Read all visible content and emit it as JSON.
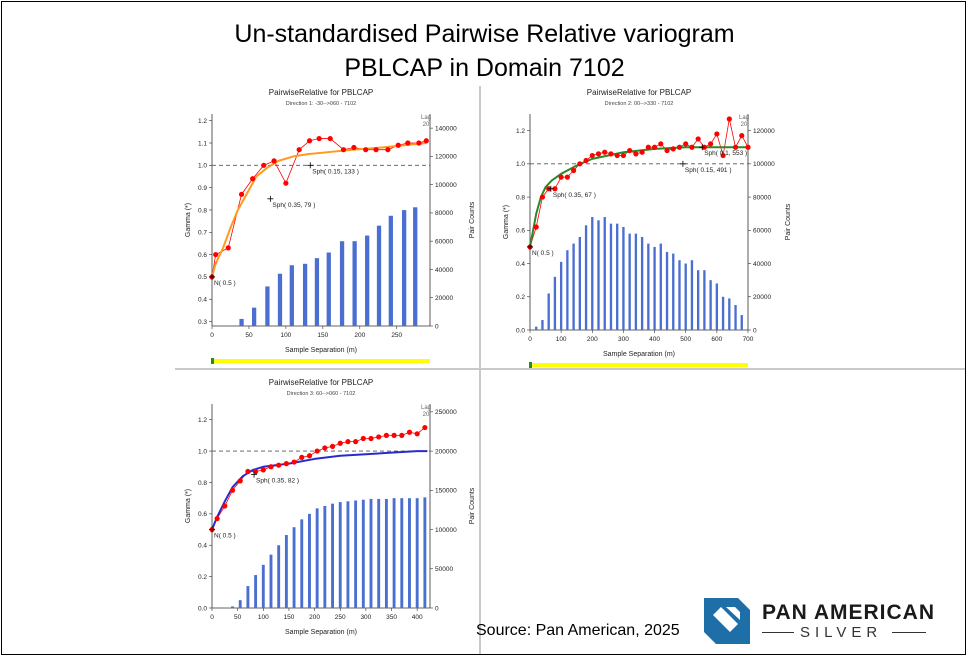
{
  "title_line1": "Un-standardised Pairwise Relative variogram",
  "title_line2": "PBLCAP in Domain 7102",
  "source": "Source: Pan American, 2025",
  "logo": {
    "line1": "PAN AMERICAN",
    "line2": "SILVER",
    "icon": "pan-american-logo-icon",
    "color": "#1e6fa8"
  },
  "colors": {
    "experimental": "#ff0000",
    "bars": "#4a6fd0",
    "fit1": "#ff9a1f",
    "fit2": "#2a8a2a",
    "fit3": "#2a2aca",
    "dashed": "#555555",
    "slider": "#ffff00"
  },
  "chart_data": [
    {
      "type": "line",
      "title": "PairwiseRelative for PBLCAP",
      "subtitle": "Direction 1: -30-->060 - 7102",
      "xlabel": "Sample Separation (m)",
      "ylabel": "Gamma (*)",
      "y2label": "Pair Counts",
      "lag_label": "Lag",
      "lag_value": "20",
      "xlim": [
        0,
        295
      ],
      "ylim": [
        0.28,
        1.23
      ],
      "y2lim": [
        0,
        150000
      ],
      "xticks": [
        0,
        50,
        100,
        150,
        200,
        250
      ],
      "yticks": [
        0.3,
        0.4,
        0.5,
        0.6,
        0.7,
        0.8,
        0.9,
        1.0,
        1.1,
        1.2
      ],
      "y2ticks": [
        0,
        20000,
        40000,
        60000,
        80000,
        100000,
        120000,
        140000
      ],
      "sill": 1.0,
      "fit_color": "#ff9a1f",
      "experimental": {
        "x": [
          0,
          5,
          22,
          40,
          55,
          70,
          84,
          100,
          118,
          132,
          145,
          160,
          178,
          192,
          208,
          222,
          238,
          252,
          265,
          280,
          290
        ],
        "y": [
          0.5,
          0.6,
          0.63,
          0.87,
          0.94,
          1.0,
          1.02,
          0.92,
          1.07,
          1.11,
          1.12,
          1.12,
          1.07,
          1.08,
          1.07,
          1.07,
          1.07,
          1.09,
          1.1,
          1.1,
          1.11
        ]
      },
      "fit": {
        "x": [
          0,
          5,
          15,
          25,
          35,
          50,
          60,
          75,
          90,
          110,
          130,
          160,
          190,
          230,
          260,
          290
        ],
        "y": [
          0.5,
          0.56,
          0.63,
          0.72,
          0.8,
          0.89,
          0.95,
          0.99,
          1.02,
          1.04,
          1.05,
          1.06,
          1.07,
          1.08,
          1.09,
          1.1
        ]
      },
      "bars": {
        "x": [
          40,
          57,
          75,
          92,
          108,
          126,
          142,
          158,
          176,
          193,
          210,
          226,
          242,
          260,
          275
        ],
        "y": [
          5000,
          13000,
          28000,
          37000,
          43000,
          44000,
          48000,
          52000,
          60000,
          60000,
          64000,
          71000,
          78000,
          82000,
          84000
        ]
      },
      "annotations": [
        {
          "text": "N( 0.5 )",
          "x": 0,
          "y": 0.5
        },
        {
          "text": "Sph( 0.35, 79 )",
          "x": 79,
          "y": 0.85
        },
        {
          "text": "Sph( 0.15, 133 )",
          "x": 133,
          "y": 1.0
        }
      ],
      "legend": ""
    },
    {
      "type": "line",
      "title": "PairwiseRelative for PBLCAP",
      "subtitle": "Direction 2: 00-->330 - 7102",
      "xlabel": "Sample Separation (m)",
      "ylabel": "Gamma (*)",
      "y2label": "Pair Counts",
      "lag_label": "Lag",
      "lag_value": "20",
      "xlim": [
        0,
        700
      ],
      "ylim": [
        0,
        1.3
      ],
      "y2lim": [
        0,
        130000
      ],
      "xticks": [
        0,
        100,
        200,
        300,
        400,
        500,
        600,
        700
      ],
      "yticks": [
        0.0,
        0.2,
        0.4,
        0.6,
        0.8,
        1.0,
        1.2
      ],
      "y2ticks": [
        0,
        20000,
        40000,
        60000,
        80000,
        100000,
        120000
      ],
      "sill": 1.0,
      "fit_color": "#2a8a2a",
      "experimental": {
        "x": [
          0,
          20,
          40,
          60,
          80,
          100,
          120,
          140,
          160,
          180,
          200,
          220,
          240,
          260,
          280,
          300,
          320,
          340,
          360,
          380,
          400,
          420,
          440,
          460,
          480,
          500,
          520,
          540,
          560,
          580,
          600,
          620,
          640,
          660,
          680,
          700
        ],
        "y": [
          0.5,
          0.62,
          0.8,
          0.85,
          0.85,
          0.92,
          0.92,
          0.96,
          1.0,
          1.02,
          1.05,
          1.06,
          1.07,
          1.06,
          1.05,
          1.05,
          1.08,
          1.06,
          1.07,
          1.1,
          1.1,
          1.12,
          1.08,
          1.09,
          1.1,
          1.12,
          1.1,
          1.15,
          1.1,
          1.12,
          1.18,
          1.05,
          1.27,
          1.1,
          1.17,
          1.1
        ]
      },
      "fit": {
        "x": [
          0,
          10,
          20,
          35,
          50,
          70,
          100,
          150,
          200,
          300,
          400,
          500,
          600,
          700
        ],
        "y": [
          0.5,
          0.6,
          0.7,
          0.8,
          0.86,
          0.9,
          0.94,
          0.99,
          1.03,
          1.07,
          1.09,
          1.1,
          1.1,
          1.1
        ]
      },
      "bars": {
        "x": [
          20,
          40,
          60,
          80,
          100,
          120,
          140,
          160,
          180,
          200,
          220,
          240,
          260,
          280,
          300,
          320,
          340,
          360,
          380,
          400,
          420,
          440,
          460,
          480,
          500,
          520,
          540,
          560,
          580,
          600,
          620,
          640,
          660,
          680
        ],
        "y": [
          2000,
          6000,
          22000,
          32000,
          41000,
          48000,
          52000,
          56000,
          63000,
          68000,
          66000,
          68000,
          64000,
          64000,
          62000,
          58000,
          58000,
          56000,
          52000,
          50000,
          52000,
          47000,
          46000,
          42000,
          40000,
          42000,
          36000,
          36000,
          30000,
          28000,
          20000,
          19000,
          15000,
          9000
        ]
      },
      "annotations": [
        {
          "text": "N( 0.5 )",
          "x": 0,
          "y": 0.5
        },
        {
          "text": "Sph( 0.35, 67 )",
          "x": 67,
          "y": 0.85
        },
        {
          "text": "Sph( 0.15, 491 )",
          "x": 491,
          "y": 1.0
        },
        {
          "text": "Sph( 0.1, 553 )",
          "x": 553,
          "y": 1.1
        }
      ],
      "legend": ""
    },
    {
      "type": "line",
      "title": "PairwiseRelative for PBLCAP",
      "subtitle": "Direction 3: 60-->060 - 7102",
      "xlabel": "Sample Separation (m)",
      "ylabel": "Gamma (*)",
      "y2label": "Pair Counts",
      "lag_label": "Lag",
      "lag_value": "20",
      "xlim": [
        0,
        425
      ],
      "ylim": [
        0,
        1.3
      ],
      "y2lim": [
        0,
        260000
      ],
      "xticks": [
        0,
        50,
        100,
        150,
        200,
        250,
        300,
        350,
        400
      ],
      "yticks": [
        0.0,
        0.2,
        0.4,
        0.6,
        0.8,
        1.0,
        1.2
      ],
      "y2ticks": [
        0,
        50000,
        100000,
        150000,
        200000,
        250000
      ],
      "sill": 1.0,
      "fit_color": "#2a2aca",
      "experimental": {
        "x": [
          0,
          10,
          25,
          40,
          55,
          70,
          85,
          100,
          115,
          130,
          145,
          160,
          175,
          190,
          205,
          220,
          235,
          250,
          265,
          280,
          295,
          310,
          325,
          340,
          355,
          370,
          385,
          400,
          415
        ],
        "y": [
          0.5,
          0.57,
          0.65,
          0.75,
          0.81,
          0.87,
          0.87,
          0.88,
          0.9,
          0.91,
          0.92,
          0.93,
          0.96,
          0.97,
          1.0,
          1.02,
          1.03,
          1.05,
          1.06,
          1.06,
          1.08,
          1.08,
          1.09,
          1.1,
          1.1,
          1.1,
          1.12,
          1.11,
          1.15
        ]
      },
      "fit": {
        "x": [
          0,
          10,
          25,
          40,
          60,
          80,
          100,
          150,
          200,
          250,
          300,
          350,
          400,
          420
        ],
        "y": [
          0.5,
          0.58,
          0.68,
          0.77,
          0.84,
          0.88,
          0.9,
          0.92,
          0.95,
          0.97,
          0.98,
          0.99,
          1.0,
          1.0
        ]
      },
      "bars": {
        "x": [
          40,
          55,
          70,
          85,
          100,
          115,
          130,
          145,
          160,
          175,
          190,
          205,
          220,
          235,
          250,
          265,
          280,
          295,
          310,
          325,
          340,
          355,
          370,
          385,
          400,
          415
        ],
        "y": [
          2000,
          10000,
          28000,
          42000,
          55000,
          68000,
          80000,
          93000,
          103000,
          113000,
          120000,
          127000,
          130000,
          133000,
          135000,
          136000,
          137000,
          138000,
          139000,
          139000,
          139000,
          140000,
          140000,
          140000,
          140000,
          141000
        ]
      },
      "annotations": [
        {
          "text": "N( 0.5 )",
          "x": 0,
          "y": 0.5
        },
        {
          "text": "Sph( 0.35, 82 )",
          "x": 82,
          "y": 0.85
        }
      ],
      "legend": ""
    }
  ]
}
